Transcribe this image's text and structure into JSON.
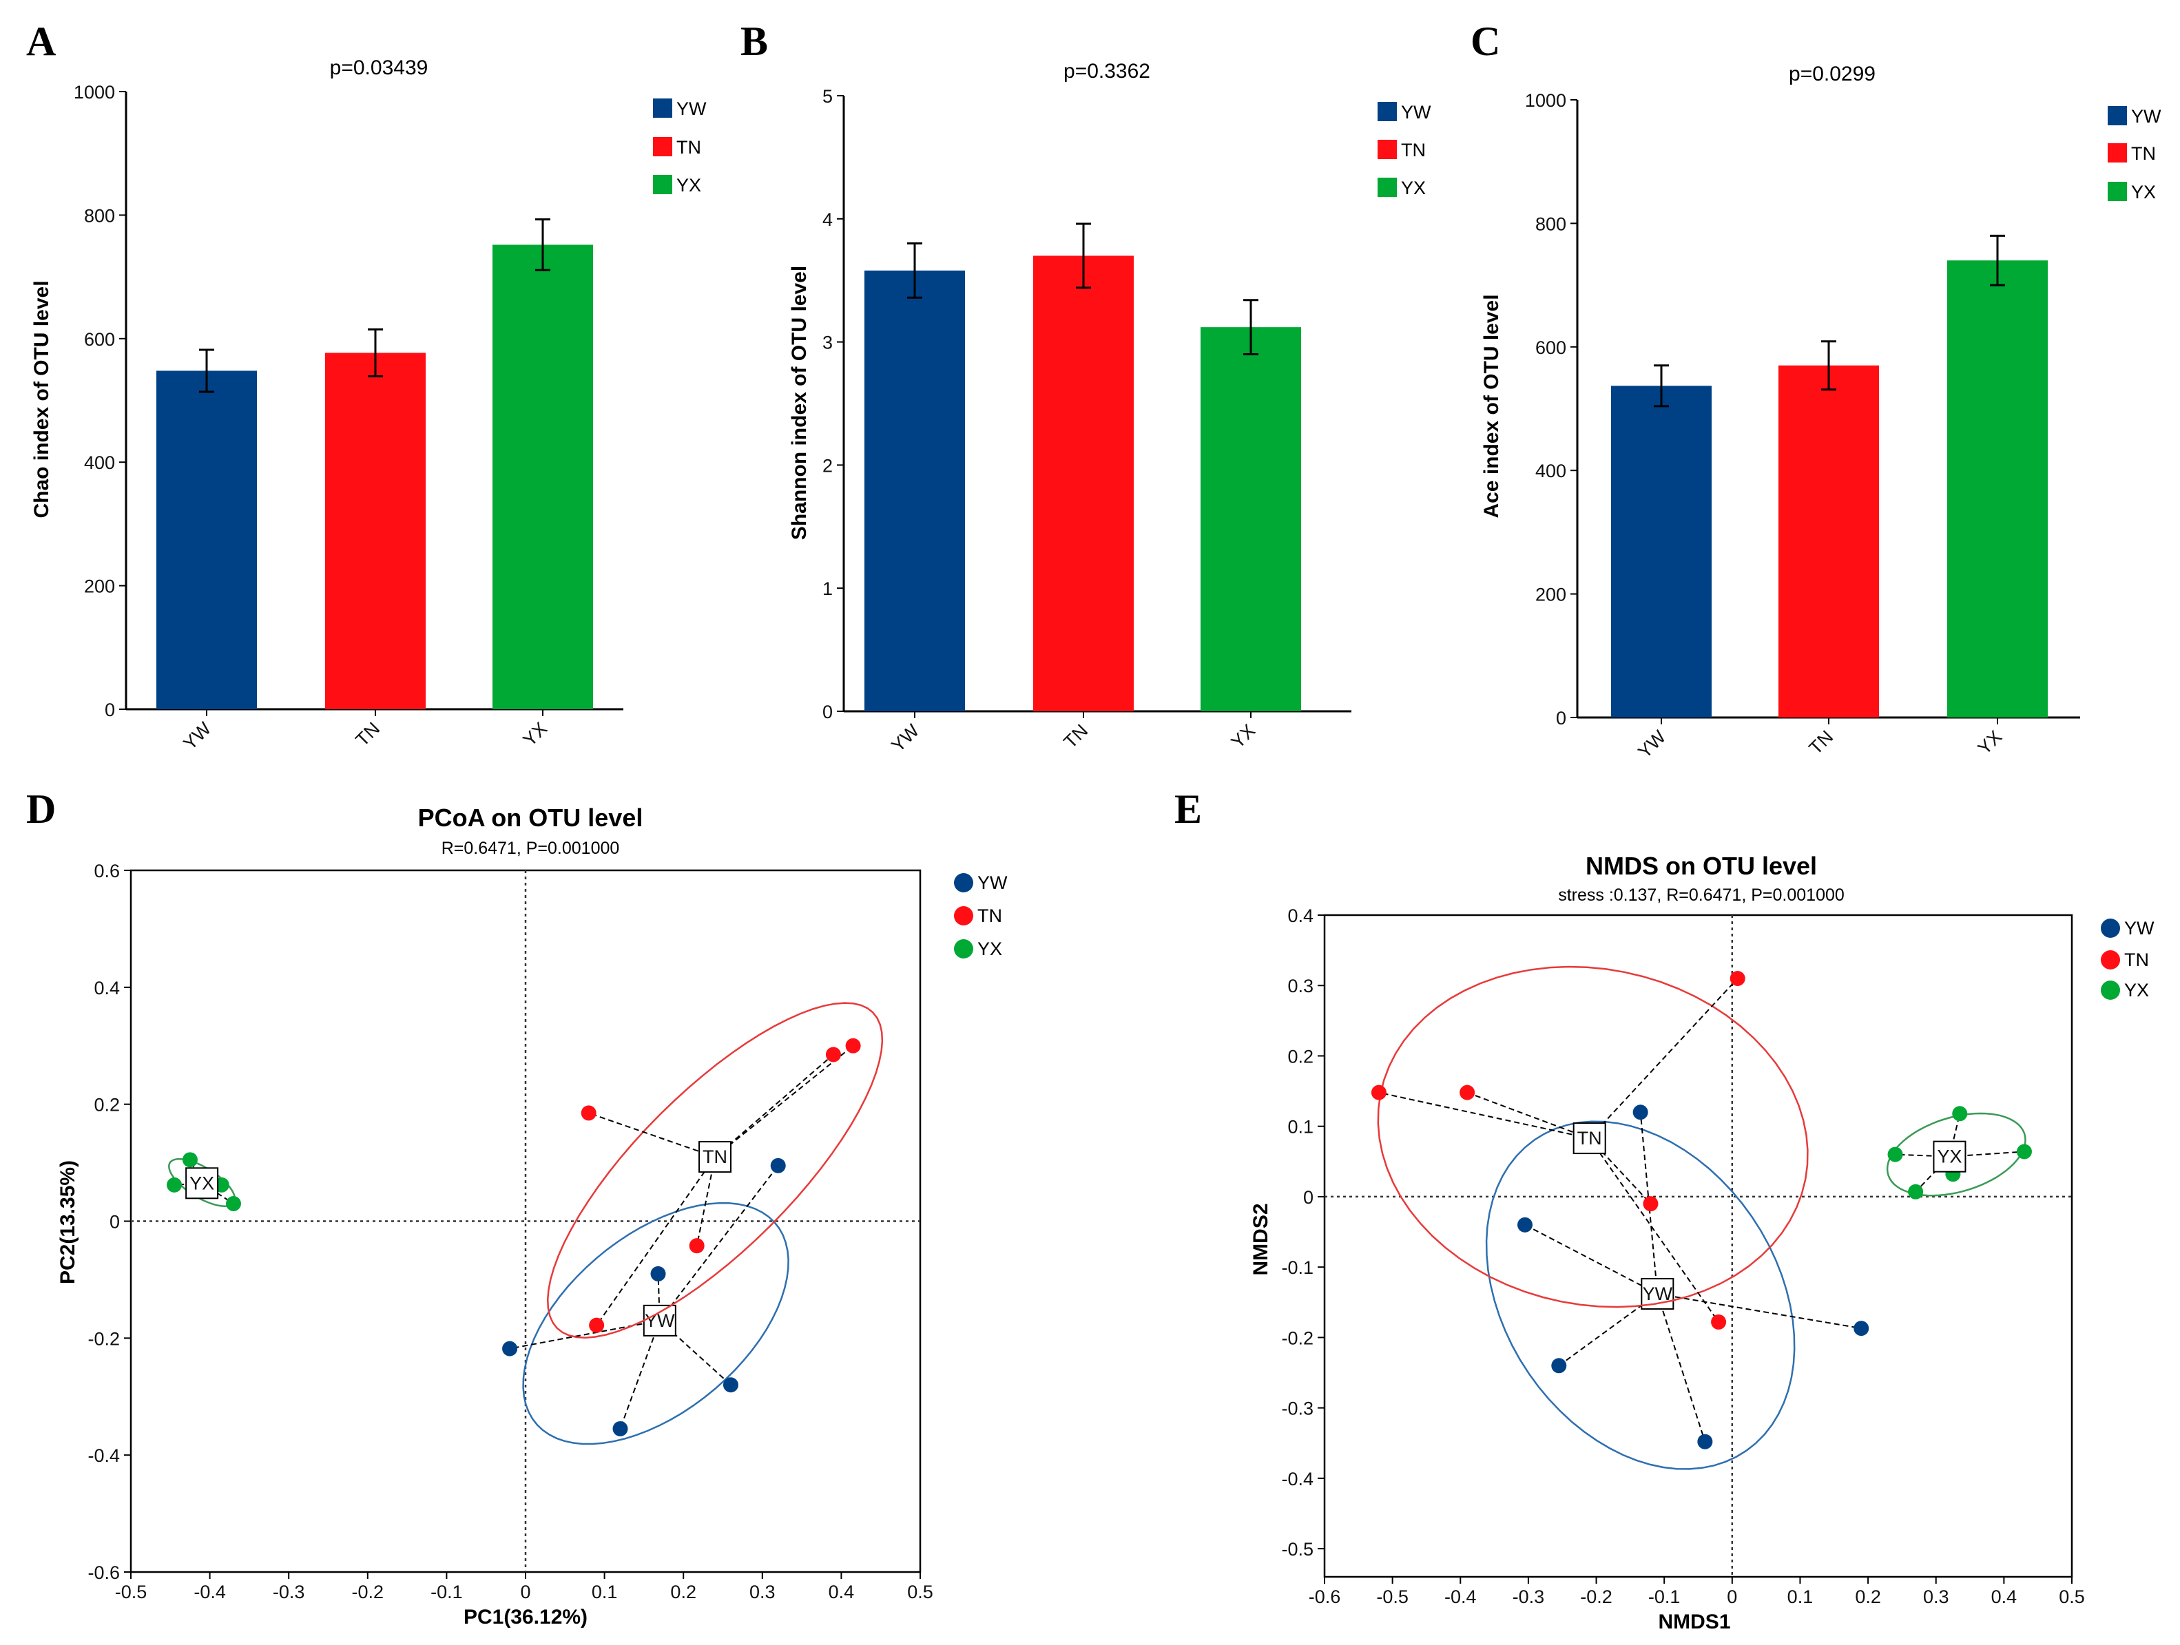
{
  "colors": {
    "YW": "#004186",
    "TN": "#ff0f14",
    "YX": "#00a834",
    "YW_ellipse": "#2e6fb0",
    "TN_ellipse": "#e83a3a",
    "YX_ellipse": "#3a9a55"
  },
  "chart_data": [
    {
      "panel": "A",
      "type": "bar",
      "title": "p=0.03439",
      "xlabel": "",
      "ylabel": "Chao index of OTU level",
      "categories": [
        "YW",
        "TN",
        "YX"
      ],
      "values": [
        548,
        577,
        752
      ],
      "errors": [
        34,
        38,
        41
      ],
      "ylim": [
        0,
        1000
      ],
      "yticks": [
        0,
        200,
        400,
        600,
        800,
        1000
      ],
      "legend": [
        "YW",
        "TN",
        "YX"
      ],
      "legend_position": "top-right"
    },
    {
      "panel": "B",
      "type": "bar",
      "title": "p=0.3362",
      "xlabel": "",
      "ylabel": "Shannon index of OTU level",
      "categories": [
        "YW",
        "TN",
        "YX"
      ],
      "values": [
        3.58,
        3.7,
        3.12
      ],
      "errors": [
        0.22,
        0.26,
        0.22
      ],
      "ylim": [
        0,
        5
      ],
      "yticks": [
        0,
        1,
        2,
        3,
        4,
        5
      ],
      "legend": [
        "YW",
        "TN",
        "YX"
      ],
      "legend_position": "top-right"
    },
    {
      "panel": "C",
      "type": "bar",
      "title": "p=0.0299",
      "xlabel": "",
      "ylabel": "Ace index of OTU level",
      "categories": [
        "YW",
        "TN",
        "YX"
      ],
      "values": [
        537,
        570,
        740
      ],
      "errors": [
        33,
        39,
        40
      ],
      "ylim": [
        0,
        1000
      ],
      "yticks": [
        0,
        200,
        400,
        600,
        800,
        1000
      ],
      "legend": [
        "YW",
        "TN",
        "YX"
      ],
      "legend_position": "top-right"
    },
    {
      "panel": "D",
      "type": "scatter",
      "title": "PCoA on OTU level",
      "subtitle": "R=0.6471, P=0.001000",
      "xlabel": "PC1(36.12%)",
      "ylabel": "PC2(13.35%)",
      "xlim": [
        -0.5,
        0.5
      ],
      "ylim": [
        -0.6,
        0.6
      ],
      "xticks": [
        -0.5,
        -0.4,
        -0.3,
        -0.2,
        -0.1,
        0,
        0.1,
        0.2,
        0.3,
        0.4,
        0.5
      ],
      "yticks": [
        -0.6,
        -0.4,
        -0.2,
        0,
        0.2,
        0.4,
        0.6
      ],
      "legend": [
        "YW",
        "TN",
        "YX"
      ],
      "legend_position": "right",
      "series": [
        {
          "name": "YW",
          "centroid": [
            0.17,
            -0.17
          ],
          "points": [
            [
              0.32,
              0.095
            ],
            [
              -0.02,
              -0.218
            ],
            [
              0.26,
              -0.28
            ],
            [
              0.12,
              -0.355
            ],
            [
              0.168,
              -0.09
            ]
          ],
          "ellipse": {
            "center": [
              0.165,
              -0.175
            ],
            "a": [
              0.135,
              0.19
            ],
            "b": [
              0.1,
              -0.08
            ]
          }
        },
        {
          "name": "TN",
          "centroid": [
            0.24,
            0.11
          ],
          "points": [
            [
              0.08,
              0.185
            ],
            [
              0.39,
              0.285
            ],
            [
              0.415,
              0.3
            ],
            [
              0.217,
              -0.042
            ],
            [
              0.09,
              -0.178
            ]
          ],
          "ellipse": {
            "center": [
              0.24,
              0.087
            ],
            "a": [
              0.2,
              0.27
            ],
            "b": [
              0.07,
              -0.095
            ]
          }
        },
        {
          "name": "YX",
          "centroid": [
            -0.41,
            0.065
          ],
          "points": [
            [
              -0.445,
              0.062
            ],
            [
              -0.425,
              0.105
            ],
            [
              -0.385,
              0.062
            ],
            [
              -0.37,
              0.03
            ]
          ],
          "ellipse": {
            "center": [
              -0.41,
              0.066
            ],
            "a": [
              0.04,
              -0.035
            ],
            "b": [
              0.012,
              0.02
            ]
          }
        }
      ]
    },
    {
      "panel": "E",
      "type": "scatter",
      "title": "NMDS on OTU level",
      "subtitle": "stress :0.137, R=0.6471, P=0.001000",
      "xlabel": "NMDS1",
      "ylabel": "NMDS2",
      "xlim": [
        -0.6,
        0.5
      ],
      "ylim": [
        -0.54,
        0.4
      ],
      "xticks": [
        -0.6,
        -0.5,
        -0.4,
        -0.3,
        -0.2,
        -0.1,
        0,
        0.1,
        0.2,
        0.3,
        0.4,
        0.5
      ],
      "yticks": [
        -0.5,
        -0.4,
        -0.3,
        -0.2,
        -0.1,
        0,
        0.1,
        0.2,
        0.3,
        0.4
      ],
      "legend": [
        "YW",
        "TN",
        "YX"
      ],
      "legend_position": "right",
      "series": [
        {
          "name": "YW",
          "centroid": [
            -0.11,
            -0.138
          ],
          "points": [
            [
              -0.135,
              0.12
            ],
            [
              -0.305,
              -0.04
            ],
            [
              -0.255,
              -0.24
            ],
            [
              -0.04,
              -0.348
            ],
            [
              0.19,
              -0.187
            ]
          ],
          "ellipse": {
            "center": [
              -0.135,
              -0.14
            ],
            "a": [
              0.17,
              -0.21
            ],
            "b": [
              0.15,
              0.13
            ]
          }
        },
        {
          "name": "TN",
          "centroid": [
            -0.21,
            0.083
          ],
          "points": [
            [
              -0.52,
              0.148
            ],
            [
              -0.39,
              0.148
            ],
            [
              0.008,
              0.31
            ],
            [
              -0.12,
              -0.01
            ],
            [
              -0.02,
              -0.178
            ]
          ],
          "ellipse": {
            "center": [
              -0.205,
              0.085
            ],
            "a": [
              0.3,
              -0.1
            ],
            "b": [
              0.1,
              0.22
            ]
          }
        },
        {
          "name": "YX",
          "centroid": [
            0.32,
            0.057
          ],
          "points": [
            [
              0.24,
              0.06
            ],
            [
              0.335,
              0.118
            ],
            [
              0.43,
              0.064
            ],
            [
              0.27,
              0.007
            ],
            [
              0.325,
              0.032
            ]
          ],
          "ellipse": {
            "center": [
              0.33,
              0.06
            ],
            "a": [
              0.1,
              0.03
            ],
            "b": [
              -0.018,
              0.05
            ]
          }
        }
      ]
    }
  ]
}
